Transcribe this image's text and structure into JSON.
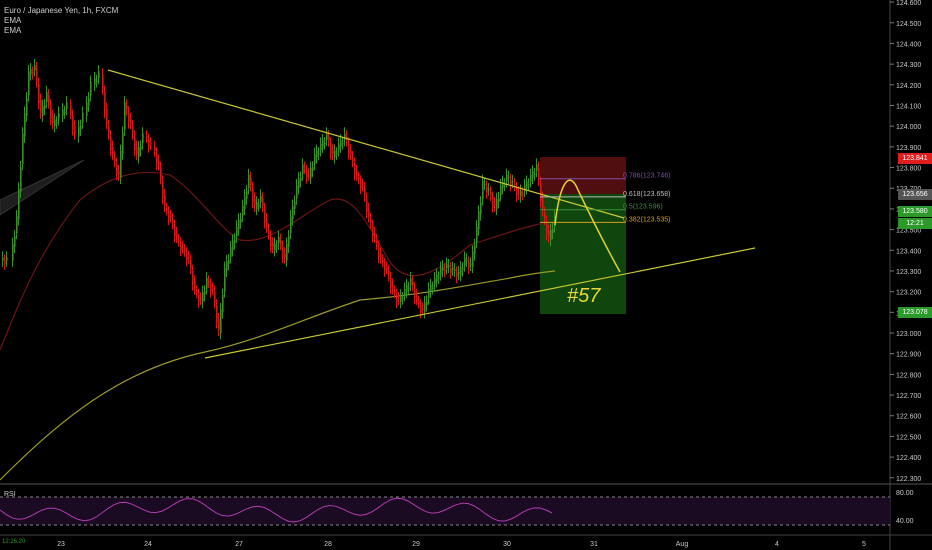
{
  "header": {
    "symbol_line": "Euro / Japanese Yen, 1h, FXCM",
    "indicators": [
      "EMA",
      "EMA"
    ]
  },
  "colors": {
    "background": "#000000",
    "up_candle": "#3a8f2a",
    "down_candle": "#d01a1a",
    "trendline": "#c8c832",
    "ema_slow": "#9a9a28",
    "ema_fast": "#6a1414",
    "stop_zone": "#5a0f0f",
    "target_zone": "#0f4a0f",
    "rsi_line": "#b23bb2",
    "price_red": "#e01e1e",
    "price_green": "#2b9a2b"
  },
  "price_axis": {
    "ticks": [
      "124.600",
      "124.500",
      "124.400",
      "124.300",
      "124.200",
      "124.100",
      "124.000",
      "123.900",
      "123.800",
      "123.700",
      "123.600",
      "123.500",
      "123.400",
      "123.300",
      "123.200",
      "123.100",
      "123.000",
      "122.900",
      "122.800",
      "122.700",
      "122.600",
      "122.500",
      "122.400",
      "122.300"
    ],
    "min": 122.27,
    "max": 124.61
  },
  "price_boxes": {
    "stop": "123.841",
    "current": "123.656",
    "entry": "123.580",
    "countdown": "12:21",
    "target": "123.078"
  },
  "fib_labels": [
    {
      "text": "0.786(123.746)",
      "value": 123.746,
      "color": "#7a4fa8"
    },
    {
      "text": "0.618(123.658)",
      "value": 123.658,
      "color": "#bdbdbd"
    },
    {
      "text": "0.5(123.596)",
      "value": 123.596,
      "color": "#3b8f3b"
    },
    {
      "text": "0.382(123.535)",
      "value": 123.535,
      "color": "#d8a020"
    }
  ],
  "annotation": "#57",
  "rsi": {
    "label": "RSI",
    "ticks": [
      "80.00",
      "40.00"
    ],
    "corner_value": "12:26.20"
  },
  "time_axis": [
    "23",
    "24",
    "27",
    "28",
    "29",
    "30",
    "31",
    "Aug",
    "4",
    "5"
  ]
}
